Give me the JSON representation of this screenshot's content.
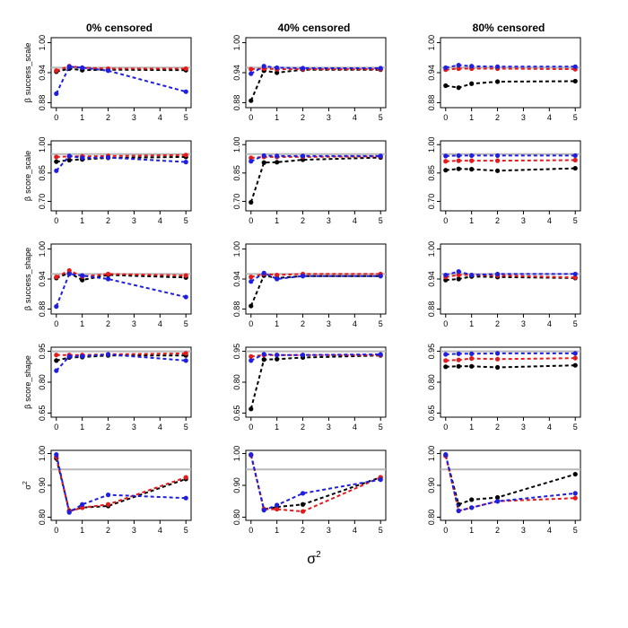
{
  "colors": {
    "black_series": "#000000",
    "red_series": "#e41a1c",
    "blue_series": "#1f1fe0",
    "reference_line": "#b8b8b8",
    "frame": "#000000"
  },
  "figure": {
    "column_titles": [
      "0% censored",
      "40% censored",
      "80% censored"
    ],
    "row_labels": [
      {
        "prefix": "β",
        "text": "success_scale"
      },
      {
        "prefix": "β",
        "text": "score_scale"
      },
      {
        "prefix": "β",
        "text": "success_shape"
      },
      {
        "prefix": "β",
        "text": "score_shape"
      },
      {
        "prefix": "σ",
        "text": "2"
      }
    ],
    "x_axis_label": {
      "base": "σ",
      "sup": "2"
    },
    "x_ticks": [
      "0",
      "1",
      "2",
      "3",
      "4",
      "5"
    ]
  },
  "chart_data": [
    {
      "type": "line",
      "row": 0,
      "col": 0,
      "x": [
        0,
        0.5,
        1,
        2,
        5
      ],
      "ylim": [
        0.87,
        1.01
      ],
      "yticks": [
        "0.88",
        "0.94",
        "1.00"
      ],
      "ytick_values": [
        0.88,
        0.94,
        1.0
      ],
      "reference": 0.95,
      "series": [
        {
          "name": "black",
          "values": [
            0.942,
            0.948,
            0.945,
            0.946,
            0.945
          ]
        },
        {
          "name": "red",
          "values": [
            0.944,
            0.953,
            0.95,
            0.948,
            0.948
          ]
        },
        {
          "name": "blue",
          "values": [
            0.898,
            0.952,
            0.95,
            0.944,
            0.902
          ]
        }
      ]
    },
    {
      "type": "line",
      "row": 0,
      "col": 1,
      "x": [
        0,
        0.5,
        1,
        2,
        5
      ],
      "ylim": [
        0.87,
        1.01
      ],
      "yticks": [
        "0.88",
        "0.94",
        "1.00"
      ],
      "ytick_values": [
        0.88,
        0.94,
        1.0
      ],
      "reference": 0.95,
      "series": [
        {
          "name": "black",
          "values": [
            0.884,
            0.944,
            0.94,
            0.946,
            0.946
          ]
        },
        {
          "name": "red",
          "values": [
            0.947,
            0.948,
            0.947,
            0.947,
            0.947
          ]
        },
        {
          "name": "blue",
          "values": [
            0.938,
            0.953,
            0.95,
            0.949,
            0.949
          ]
        }
      ]
    },
    {
      "type": "line",
      "row": 0,
      "col": 2,
      "x": [
        0,
        0.5,
        1,
        2,
        5
      ],
      "ylim": [
        0.87,
        1.01
      ],
      "yticks": [
        "0.88",
        "0.94",
        "1.00"
      ],
      "ytick_values": [
        0.88,
        0.94,
        1.0
      ],
      "reference": 0.95,
      "series": [
        {
          "name": "black",
          "values": [
            0.914,
            0.91,
            0.918,
            0.922,
            0.923
          ]
        },
        {
          "name": "red",
          "values": [
            0.946,
            0.948,
            0.948,
            0.948,
            0.947
          ]
        },
        {
          "name": "blue",
          "values": [
            0.95,
            0.955,
            0.953,
            0.952,
            0.952
          ]
        }
      ]
    },
    {
      "type": "line",
      "row": 1,
      "col": 0,
      "x": [
        0,
        0.5,
        1,
        2,
        5
      ],
      "ylim": [
        0.65,
        1.02
      ],
      "yticks": [
        "0.70",
        "0.85",
        "1.00"
      ],
      "ytick_values": [
        0.7,
        0.85,
        1.0
      ],
      "reference": 0.95,
      "series": [
        {
          "name": "black",
          "values": [
            0.91,
            0.918,
            0.922,
            0.93,
            0.935
          ]
        },
        {
          "name": "red",
          "values": [
            0.935,
            0.938,
            0.938,
            0.94,
            0.945
          ]
        },
        {
          "name": "blue",
          "values": [
            0.862,
            0.94,
            0.93,
            0.932,
            0.908
          ]
        }
      ]
    },
    {
      "type": "line",
      "row": 1,
      "col": 1,
      "x": [
        0,
        0.5,
        1,
        2,
        5
      ],
      "ylim": [
        0.65,
        1.02
      ],
      "yticks": [
        "0.70",
        "0.85",
        "1.00"
      ],
      "ytick_values": [
        0.7,
        0.85,
        1.0
      ],
      "reference": 0.95,
      "series": [
        {
          "name": "black",
          "values": [
            0.695,
            0.905,
            0.907,
            0.92,
            0.932
          ]
        },
        {
          "name": "red",
          "values": [
            0.93,
            0.935,
            0.935,
            0.935,
            0.938
          ]
        },
        {
          "name": "blue",
          "values": [
            0.912,
            0.942,
            0.94,
            0.94,
            0.94
          ]
        }
      ]
    },
    {
      "type": "line",
      "row": 1,
      "col": 2,
      "x": [
        0,
        0.5,
        1,
        2,
        5
      ],
      "ylim": [
        0.65,
        1.02
      ],
      "yticks": [
        "0.70",
        "0.85",
        "1.00"
      ],
      "ytick_values": [
        0.7,
        0.85,
        1.0
      ],
      "reference": 0.95,
      "series": [
        {
          "name": "black",
          "values": [
            0.865,
            0.872,
            0.87,
            0.862,
            0.875
          ]
        },
        {
          "name": "red",
          "values": [
            0.912,
            0.915,
            0.915,
            0.915,
            0.918
          ]
        },
        {
          "name": "blue",
          "values": [
            0.94,
            0.942,
            0.942,
            0.942,
            0.942
          ]
        }
      ]
    },
    {
      "type": "line",
      "row": 2,
      "col": 0,
      "x": [
        0,
        0.5,
        1,
        2,
        5
      ],
      "ylim": [
        0.87,
        1.01
      ],
      "yticks": [
        "0.88",
        "0.94",
        "1.00"
      ],
      "ytick_values": [
        0.88,
        0.94,
        1.0
      ],
      "reference": 0.95,
      "series": [
        {
          "name": "black",
          "values": [
            0.942,
            0.952,
            0.938,
            0.948,
            0.943
          ]
        },
        {
          "name": "red",
          "values": [
            0.944,
            0.957,
            0.945,
            0.95,
            0.947
          ]
        },
        {
          "name": "blue",
          "values": [
            0.885,
            0.95,
            0.947,
            0.94,
            0.904
          ]
        }
      ]
    },
    {
      "type": "line",
      "row": 2,
      "col": 1,
      "x": [
        0,
        0.5,
        1,
        2,
        5
      ],
      "ylim": [
        0.87,
        1.01
      ],
      "yticks": [
        "0.88",
        "0.94",
        "1.00"
      ],
      "ytick_values": [
        0.88,
        0.94,
        1.0
      ],
      "reference": 0.95,
      "series": [
        {
          "name": "black",
          "values": [
            0.886,
            0.947,
            0.942,
            0.946,
            0.946
          ]
        },
        {
          "name": "red",
          "values": [
            0.944,
            0.95,
            0.948,
            0.95,
            0.95
          ]
        },
        {
          "name": "blue",
          "values": [
            0.935,
            0.952,
            0.94,
            0.946,
            0.946
          ]
        }
      ]
    },
    {
      "type": "line",
      "row": 2,
      "col": 2,
      "x": [
        0,
        0.5,
        1,
        2,
        5
      ],
      "ylim": [
        0.87,
        1.01
      ],
      "yticks": [
        "0.88",
        "0.94",
        "1.00"
      ],
      "ytick_values": [
        0.88,
        0.94,
        1.0
      ],
      "reference": 0.95,
      "series": [
        {
          "name": "black",
          "values": [
            0.938,
            0.94,
            0.945,
            0.944,
            0.942
          ]
        },
        {
          "name": "red",
          "values": [
            0.944,
            0.948,
            0.948,
            0.947,
            0.943
          ]
        },
        {
          "name": "blue",
          "values": [
            0.948,
            0.955,
            0.948,
            0.95,
            0.95
          ]
        }
      ]
    },
    {
      "type": "line",
      "row": 3,
      "col": 0,
      "x": [
        0,
        0.5,
        1,
        2,
        5
      ],
      "ylim": [
        0.63,
        0.97
      ],
      "yticks": [
        "0.65",
        "0.80",
        "0.95"
      ],
      "ytick_values": [
        0.65,
        0.8,
        0.95
      ],
      "reference": 0.95,
      "series": [
        {
          "name": "black",
          "values": [
            0.905,
            0.92,
            0.922,
            0.93,
            0.93
          ]
        },
        {
          "name": "red",
          "values": [
            0.932,
            0.932,
            0.932,
            0.935,
            0.94
          ]
        },
        {
          "name": "blue",
          "values": [
            0.856,
            0.925,
            0.926,
            0.935,
            0.905
          ]
        }
      ]
    },
    {
      "type": "line",
      "row": 3,
      "col": 1,
      "x": [
        0,
        0.5,
        1,
        2,
        5
      ],
      "ylim": [
        0.63,
        0.97
      ],
      "yticks": [
        "0.65",
        "0.80",
        "0.95"
      ],
      "ytick_values": [
        0.65,
        0.8,
        0.95
      ],
      "reference": 0.95,
      "series": [
        {
          "name": "black",
          "values": [
            0.67,
            0.91,
            0.912,
            0.92,
            0.93
          ]
        },
        {
          "name": "red",
          "values": [
            0.925,
            0.932,
            0.932,
            0.932,
            0.932
          ]
        },
        {
          "name": "blue",
          "values": [
            0.905,
            0.936,
            0.932,
            0.932,
            0.935
          ]
        }
      ]
    },
    {
      "type": "line",
      "row": 3,
      "col": 2,
      "x": [
        0,
        0.5,
        1,
        2,
        5
      ],
      "ylim": [
        0.63,
        0.97
      ],
      "yticks": [
        "0.65",
        "0.80",
        "0.95"
      ],
      "ytick_values": [
        0.65,
        0.8,
        0.95
      ],
      "reference": 0.95,
      "series": [
        {
          "name": "black",
          "values": [
            0.875,
            0.877,
            0.877,
            0.872,
            0.882
          ]
        },
        {
          "name": "red",
          "values": [
            0.905,
            0.908,
            0.915,
            0.912,
            0.917
          ]
        },
        {
          "name": "blue",
          "values": [
            0.935,
            0.938,
            0.938,
            0.94,
            0.94
          ]
        }
      ]
    },
    {
      "type": "line",
      "row": 4,
      "col": 0,
      "x": [
        0,
        0.5,
        1,
        2,
        5
      ],
      "ylim": [
        0.79,
        1.01
      ],
      "yticks": [
        "0.80",
        "0.90",
        "1.00"
      ],
      "ytick_values": [
        0.8,
        0.9,
        1.0
      ],
      "reference": 0.95,
      "series": [
        {
          "name": "black",
          "values": [
            0.985,
            0.82,
            0.83,
            0.835,
            0.92
          ]
        },
        {
          "name": "red",
          "values": [
            0.99,
            0.818,
            0.83,
            0.84,
            0.925
          ]
        },
        {
          "name": "blue",
          "values": [
            0.997,
            0.815,
            0.84,
            0.87,
            0.86
          ]
        }
      ]
    },
    {
      "type": "line",
      "row": 4,
      "col": 1,
      "x": [
        0,
        0.5,
        1,
        2,
        5
      ],
      "ylim": [
        0.79,
        1.01
      ],
      "yticks": [
        "0.80",
        "0.90",
        "1.00"
      ],
      "ytick_values": [
        0.8,
        0.9,
        1.0
      ],
      "reference": 0.95,
      "series": [
        {
          "name": "black",
          "values": [
            0.995,
            0.825,
            0.832,
            0.84,
            0.925
          ]
        },
        {
          "name": "red",
          "values": [
            0.995,
            0.825,
            0.825,
            0.818,
            0.925
          ]
        },
        {
          "name": "blue",
          "values": [
            0.997,
            0.822,
            0.838,
            0.875,
            0.918
          ]
        }
      ]
    },
    {
      "type": "line",
      "row": 4,
      "col": 2,
      "x": [
        0,
        0.5,
        1,
        2,
        5
      ],
      "ylim": [
        0.79,
        1.01
      ],
      "yticks": [
        "0.80",
        "0.90",
        "1.00"
      ],
      "ytick_values": [
        0.8,
        0.9,
        1.0
      ],
      "reference": 0.95,
      "series": [
        {
          "name": "black",
          "values": [
            0.993,
            0.84,
            0.855,
            0.862,
            0.935
          ]
        },
        {
          "name": "red",
          "values": [
            0.993,
            0.82,
            0.83,
            0.85,
            0.86
          ]
        },
        {
          "name": "blue",
          "values": [
            0.997,
            0.82,
            0.83,
            0.85,
            0.875
          ]
        }
      ]
    }
  ]
}
